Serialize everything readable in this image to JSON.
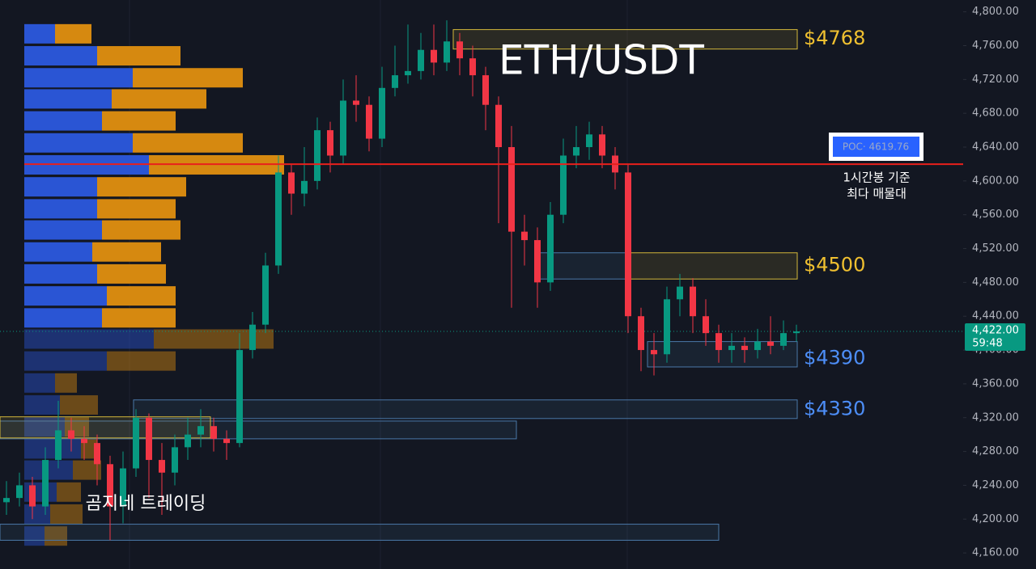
{
  "chart_data": {
    "type": "candlestick",
    "title": "ETH/USDT",
    "watermark": "곰지네 트레이딩",
    "ylim": [
      4141,
      4814
    ],
    "yticks": [
      {
        "value": 4160,
        "label": "4,160.00"
      },
      {
        "value": 4200,
        "label": "4,200.00"
      },
      {
        "value": 4240,
        "label": "4,240.00"
      },
      {
        "value": 4280,
        "label": "4,280.00"
      },
      {
        "value": 4320,
        "label": "4,320.00"
      },
      {
        "value": 4360,
        "label": "4,360.00"
      },
      {
        "value": 4400,
        "label": "4,400.00"
      },
      {
        "value": 4440,
        "label": "4,440.00"
      },
      {
        "value": 4480,
        "label": "4,480.00"
      },
      {
        "value": 4520,
        "label": "4,520.00"
      },
      {
        "value": 4560,
        "label": "4,560.00"
      },
      {
        "value": 4600,
        "label": "4,600.00"
      },
      {
        "value": 4640,
        "label": "4,640.00"
      },
      {
        "value": 4680,
        "label": "4,680.00"
      },
      {
        "value": 4720,
        "label": "4,720.00"
      },
      {
        "value": 4760,
        "label": "4,760.00"
      },
      {
        "value": 4800,
        "label": "4,800.00"
      }
    ],
    "up_color": "#089981",
    "down_color": "#f23645",
    "open": [
      4220,
      4225,
      4240,
      4215,
      4270,
      4305,
      4295,
      4290,
      4265,
      4215,
      4260,
      4320,
      4270,
      4255,
      4285,
      4300,
      4310,
      4295,
      4290,
      4400,
      4430,
      4500,
      4610,
      4585,
      4600,
      4660,
      4630,
      4695,
      4690,
      4650,
      4710,
      4725,
      4730,
      4755,
      4740,
      4765,
      4745,
      4725,
      4690,
      4640,
      4540,
      4530,
      4480,
      4560,
      4630,
      4640,
      4655,
      4630,
      4610,
      4440,
      4400,
      4395,
      4460,
      4475,
      4440,
      4420,
      4400,
      4405,
      4400,
      4410,
      4405,
      4420
    ],
    "high": [
      4245,
      4255,
      4250,
      4285,
      4340,
      4320,
      4310,
      4300,
      4275,
      4280,
      4330,
      4325,
      4290,
      4300,
      4320,
      4330,
      4320,
      4305,
      4420,
      4445,
      4515,
      4630,
      4620,
      4640,
      4675,
      4670,
      4720,
      4725,
      4700,
      4735,
      4760,
      4785,
      4775,
      4785,
      4790,
      4775,
      4760,
      4735,
      4700,
      4665,
      4560,
      4545,
      4575,
      4650,
      4665,
      4670,
      4665,
      4640,
      4620,
      4450,
      4420,
      4475,
      4490,
      4485,
      4460,
      4430,
      4420,
      4415,
      4425,
      4440,
      4435,
      4430
    ],
    "low": [
      4205,
      4215,
      4200,
      4205,
      4260,
      4280,
      4270,
      4240,
      4175,
      4195,
      4250,
      4225,
      4205,
      4240,
      4270,
      4285,
      4280,
      4270,
      4285,
      4390,
      4420,
      4490,
      4560,
      4570,
      4590,
      4610,
      4620,
      4670,
      4635,
      4640,
      4700,
      4715,
      4720,
      4725,
      4730,
      4725,
      4700,
      4660,
      4550,
      4450,
      4500,
      4450,
      4470,
      4550,
      4615,
      4625,
      4615,
      4590,
      4420,
      4375,
      4370,
      4385,
      4440,
      4420,
      4405,
      4385,
      4385,
      4385,
      4390,
      4395,
      4400,
      4410
    ],
    "close": [
      4225,
      4240,
      4215,
      4270,
      4305,
      4295,
      4290,
      4265,
      4215,
      4260,
      4320,
      4270,
      4255,
      4285,
      4300,
      4310,
      4295,
      4290,
      4400,
      4430,
      4500,
      4610,
      4585,
      4600,
      4660,
      4630,
      4695,
      4690,
      4650,
      4710,
      4725,
      4730,
      4755,
      4740,
      4765,
      4745,
      4725,
      4690,
      4640,
      4540,
      4530,
      4480,
      4560,
      4630,
      4640,
      4655,
      4630,
      4610,
      4440,
      4400,
      4395,
      4460,
      4475,
      4440,
      4420,
      4400,
      4405,
      4400,
      4410,
      4405,
      4420,
      4422
    ],
    "volume_profile": {
      "buy_color": "#2a55d4",
      "sell_color": "#d68910",
      "prices": [
        4774,
        4748,
        4722,
        4697,
        4671,
        4645,
        4619,
        4593,
        4567,
        4542,
        4516,
        4490,
        4464,
        4438,
        4413,
        4387,
        4361,
        4335,
        4309,
        4283,
        4258,
        4232,
        4206,
        4180
      ],
      "buy": [
        38,
        90,
        134,
        108,
        96,
        134,
        154,
        90,
        90,
        96,
        84,
        90,
        102,
        96,
        160,
        102,
        38,
        44,
        50,
        70,
        60,
        40,
        32,
        25
      ],
      "sell": [
        45,
        103,
        136,
        117,
        91,
        136,
        167,
        110,
        97,
        97,
        85,
        85,
        85,
        91,
        148,
        85,
        27,
        47,
        30,
        20,
        35,
        30,
        40,
        28
      ]
    },
    "zones": [
      {
        "low": 4756,
        "high": 4779,
        "value": 4768,
        "label": "$4768",
        "color": "#d4b83a"
      },
      {
        "low": 4484,
        "high": 4515,
        "value": 4500,
        "label": "$4500",
        "color": "#d4b83a"
      },
      {
        "low": 4484,
        "high": 4515,
        "color": "#4a78a8"
      },
      {
        "low": 4380,
        "high": 4410,
        "value": 4390,
        "label": "$4390",
        "color": "#4a78a8"
      },
      {
        "low": 4319,
        "high": 4341,
        "value": 4330,
        "label": "$4330",
        "color": "#4a78a8"
      },
      {
        "low": 4295,
        "high": 4316,
        "color": "#4a78a8"
      },
      {
        "low": 4296,
        "high": 4321,
        "color": "#d4b83a"
      },
      {
        "low": 4175,
        "high": 4194,
        "color": "#4a78a8"
      }
    ],
    "poc": {
      "value": 4619.76,
      "label": "POC· 4619.76",
      "note": [
        "1시간봉 기준",
        "최다 매물대"
      ],
      "color": "#e8201c"
    },
    "current": {
      "value": 4422,
      "label": "4,422.00",
      "timer": "59:48",
      "color": "#089981"
    }
  }
}
